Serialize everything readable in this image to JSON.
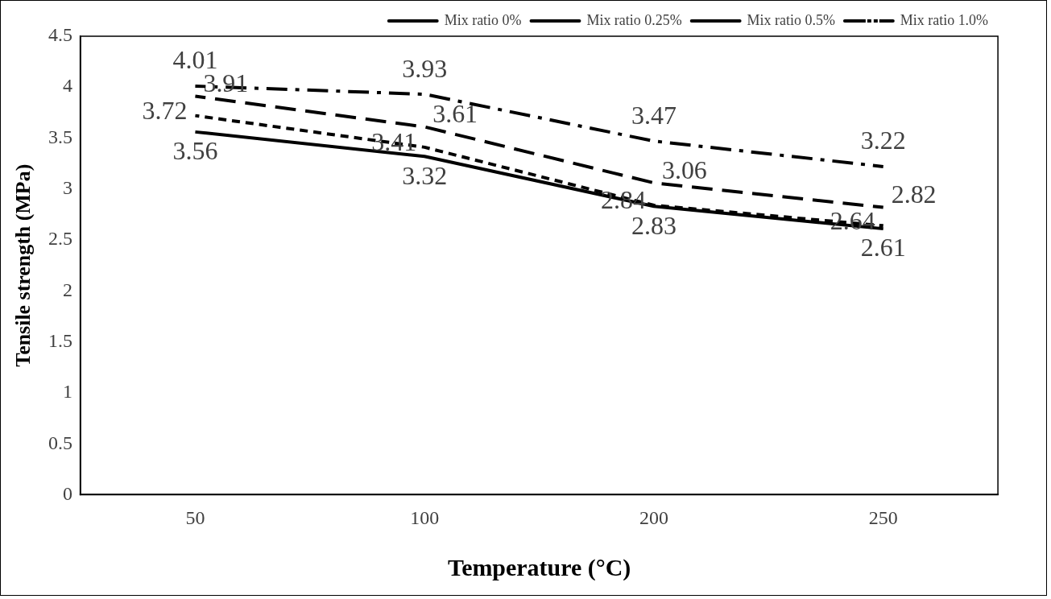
{
  "chart_data": {
    "type": "line",
    "xlabel": "Temperature (°C)",
    "ylabel": "Tensile strength (MPa)",
    "categories": [
      "50",
      "100",
      "200",
      "250"
    ],
    "series": [
      {
        "name": "Mix ratio 0%",
        "color": "#000000",
        "line_style": "solid",
        "values": [
          3.56,
          3.32,
          2.83,
          2.61
        ]
      },
      {
        "name": "Mix ratio 0.25%",
        "color": "#000000",
        "line_style": "dashed",
        "values": [
          3.72,
          3.41,
          2.84,
          2.64
        ]
      },
      {
        "name": "Mix ratio 0.5%",
        "color": "#000000",
        "line_style": "longdash",
        "values": [
          3.91,
          3.61,
          3.06,
          2.82
        ]
      },
      {
        "name": "Mix ratio 1.0%",
        "color": "#000000",
        "line_style": "dashdot",
        "values": [
          4.01,
          3.93,
          3.47,
          3.22
        ]
      }
    ],
    "ylim": [
      0,
      4.5
    ],
    "yticks": [
      0,
      0.5,
      1,
      1.5,
      2,
      2.5,
      3,
      3.5,
      4,
      4.5
    ],
    "grid": false,
    "legend": "top",
    "marker": "none",
    "data_labels": true
  }
}
